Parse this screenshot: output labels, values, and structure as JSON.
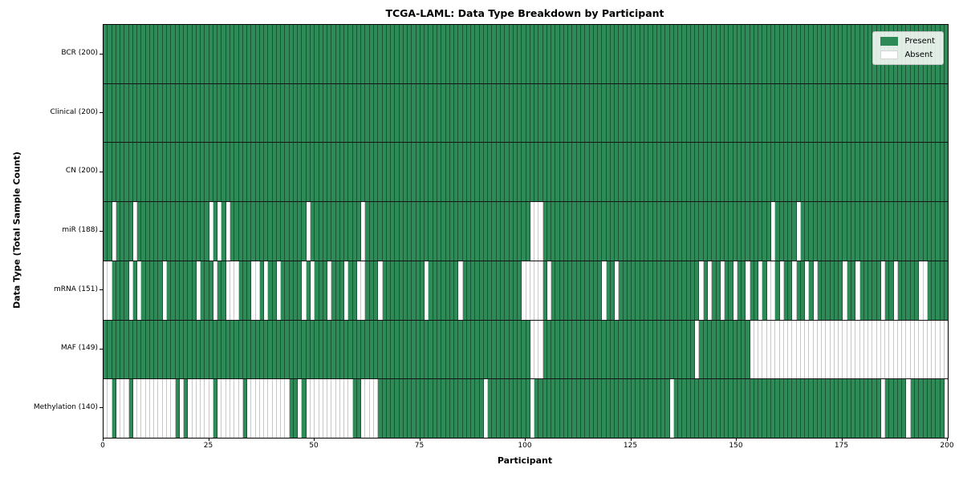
{
  "title": "TCGA-LAML: Data Type Breakdown by Participant",
  "xlabel": "Participant",
  "ylabel": "Data Type (Total Sample Count)",
  "legend": {
    "present_label": "Present",
    "absent_label": "Absent",
    "position": "upper right"
  },
  "colors": {
    "present_green": "#2e8b57",
    "absent_white": "#ffffff"
  },
  "chart_data": {
    "type": "heatmap",
    "title": "TCGA-LAML: Data Type Breakdown by Participant",
    "xlabel": "Participant",
    "ylabel": "Data Type (Total Sample Count)",
    "x_range": [
      0,
      200
    ],
    "x_ticks": [
      0,
      25,
      50,
      75,
      100,
      125,
      150,
      175,
      200
    ],
    "participants": 200,
    "grid": false,
    "legend_entries": [
      "Present",
      "Absent"
    ],
    "legend_position": "upper right",
    "categories": [
      "BCR (200)",
      "Clinical (200)",
      "CN (200)",
      "miR (188)",
      "mRNA (151)",
      "MAF (149)",
      "Methylation (140)"
    ],
    "rows": [
      {
        "name": "BCR",
        "label": "BCR (200)",
        "present_count": 200,
        "absent_participants": []
      },
      {
        "name": "Clinical",
        "label": "Clinical (200)",
        "present_count": 200,
        "absent_participants": []
      },
      {
        "name": "CN",
        "label": "CN (200)",
        "present_count": 200,
        "absent_participants": []
      },
      {
        "name": "miR",
        "label": "miR (188)",
        "present_count": 188,
        "absent_participants": [
          2,
          7,
          25,
          27,
          29,
          48,
          61,
          101,
          102,
          103,
          158,
          164
        ]
      },
      {
        "name": "mRNA",
        "label": "mRNA (151)",
        "present_count": 151,
        "absent_participants": [
          0,
          1,
          6,
          8,
          14,
          22,
          26,
          29,
          30,
          31,
          35,
          36,
          38,
          41,
          47,
          49,
          53,
          57,
          60,
          61,
          65,
          76,
          84,
          99,
          100,
          101,
          102,
          103,
          105,
          118,
          121,
          141,
          143,
          146,
          149,
          152,
          155,
          157,
          158,
          160,
          163,
          166,
          168,
          175,
          178,
          184,
          187,
          193,
          194
        ]
      },
      {
        "name": "MAF",
        "label": "MAF (149)",
        "present_count": 149,
        "absent_participants": [
          101,
          102,
          103,
          140,
          153,
          154,
          155,
          156,
          157,
          158,
          159,
          160,
          161,
          162,
          163,
          164,
          165,
          166,
          167,
          168,
          169,
          170,
          171,
          172,
          173,
          174,
          175,
          176,
          177,
          178,
          179,
          180,
          181,
          182,
          183,
          184,
          185,
          186,
          187,
          188,
          189,
          190,
          191,
          192,
          193,
          194,
          195,
          196,
          197,
          198,
          199
        ]
      },
      {
        "name": "Methylation",
        "label": "Methylation (140)",
        "present_count": 140,
        "absent_participants": [
          0,
          1,
          3,
          4,
          5,
          7,
          8,
          9,
          10,
          11,
          12,
          13,
          14,
          15,
          16,
          18,
          20,
          21,
          22,
          23,
          24,
          25,
          27,
          28,
          29,
          30,
          31,
          32,
          34,
          35,
          36,
          37,
          38,
          39,
          40,
          41,
          42,
          43,
          46,
          48,
          49,
          50,
          51,
          52,
          53,
          54,
          55,
          56,
          57,
          58,
          61,
          62,
          63,
          64,
          90,
          101,
          134,
          184,
          190,
          199
        ]
      }
    ]
  }
}
